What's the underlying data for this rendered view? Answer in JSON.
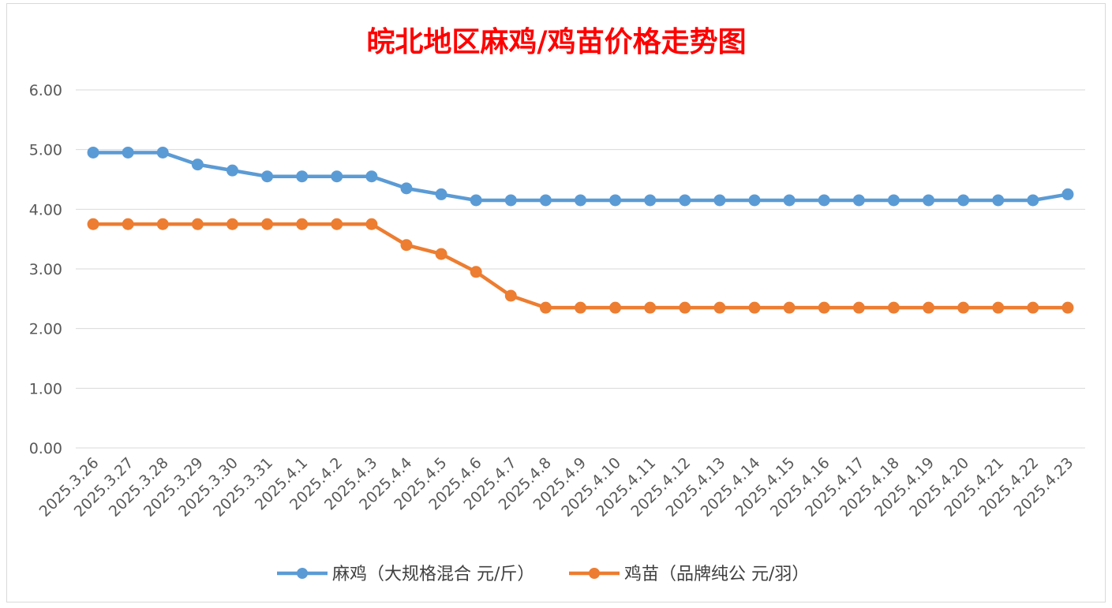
{
  "chart_data": {
    "type": "line",
    "title": "皖北地区麻鸡/鸡苗价格走势图",
    "title_color": "#ff0000",
    "categories": [
      "2025.3.26",
      "2025.3.27",
      "2025.3.28",
      "2025.3.29",
      "2025.3.30",
      "2025.3.31",
      "2025.4.1",
      "2025.4.2",
      "2025.4.3",
      "2025.4.4",
      "2025.4.5",
      "2025.4.6",
      "2025.4.7",
      "2025.4.8",
      "2025.4.9",
      "2025.4.10",
      "2025.4.11",
      "2025.4.12",
      "2025.4.13",
      "2025.4.14",
      "2025.4.15",
      "2025.4.16",
      "2025.4.17",
      "2025.4.18",
      "2025.4.19",
      "2025.4.20",
      "2025.4.21",
      "2025.4.22",
      "2025.4.23"
    ],
    "series": [
      {
        "name": "麻鸡（大规格混合 元/斤）",
        "color": "#5b9bd5",
        "values": [
          4.95,
          4.95,
          4.95,
          4.75,
          4.65,
          4.55,
          4.55,
          4.55,
          4.55,
          4.35,
          4.25,
          4.15,
          4.15,
          4.15,
          4.15,
          4.15,
          4.15,
          4.15,
          4.15,
          4.15,
          4.15,
          4.15,
          4.15,
          4.15,
          4.15,
          4.15,
          4.15,
          4.15,
          4.25
        ]
      },
      {
        "name": "鸡苗（品牌纯公 元/羽）",
        "color": "#ed7d31",
        "values": [
          3.75,
          3.75,
          3.75,
          3.75,
          3.75,
          3.75,
          3.75,
          3.75,
          3.75,
          3.4,
          3.25,
          2.95,
          2.55,
          2.35,
          2.35,
          2.35,
          2.35,
          2.35,
          2.35,
          2.35,
          2.35,
          2.35,
          2.35,
          2.35,
          2.35,
          2.35,
          2.35,
          2.35,
          2.35
        ]
      }
    ],
    "y_ticks": [
      "0.00",
      "1.00",
      "2.00",
      "3.00",
      "4.00",
      "5.00",
      "6.00"
    ],
    "ylim": [
      0,
      6
    ],
    "grid": true,
    "legend_position": "bottom"
  }
}
